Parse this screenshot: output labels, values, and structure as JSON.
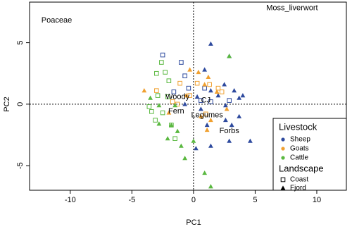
{
  "chart_data": {
    "type": "scatter",
    "xlabel": "PC1",
    "ylabel": "PC2",
    "xlim": [
      -13.3,
      12.4
    ],
    "ylim": [
      -7.0,
      8.3
    ],
    "xticks": [
      -10,
      -5,
      0,
      5,
      10
    ],
    "yticks": [
      -5,
      0,
      5
    ],
    "reference_lines": true,
    "annotations": [
      {
        "text": "Poaceae",
        "x": -11.1,
        "y": 6.8
      },
      {
        "text": "Moss_liverwort",
        "x": 8.0,
        "y": 7.8
      },
      {
        "text": "Woody",
        "x": -1.3,
        "y": 0.6
      },
      {
        "text": "CJ",
        "x": 1.0,
        "y": 0.3
      },
      {
        "text": "Fern",
        "x": -1.4,
        "y": -0.6
      },
      {
        "text": "Legumes",
        "x": 1.1,
        "y": -0.9
      },
      {
        "text": "Forbs",
        "x": 2.9,
        "y": -2.2
      }
    ],
    "legend": {
      "position": "bottom-right",
      "livestock": {
        "title": "Livestock",
        "items": [
          {
            "name": "Sheep",
            "color": "#2e4a9e"
          },
          {
            "name": "Goats",
            "color": "#f0a030"
          },
          {
            "name": "Cattle",
            "color": "#5ab840"
          }
        ]
      },
      "landscape": {
        "title": "Landscape",
        "items": [
          {
            "name": "Coast",
            "shape": "square"
          },
          {
            "name": "Fjord",
            "shape": "triangle"
          }
        ]
      }
    },
    "series": [
      {
        "color": "#2e4a9e",
        "shape": "triangle",
        "x": [
          1.4,
          2.9,
          0.9,
          2.5,
          3.3,
          4.0,
          3.7,
          1.4,
          0.3,
          0.6,
          2.6,
          1.1,
          3.1,
          3.7,
          4.6,
          2.9,
          1.4,
          0.2,
          -0.7,
          2.6,
          2.0
        ],
        "y": [
          4.9,
          3.9,
          2.8,
          1.6,
          1.1,
          0.7,
          0.5,
          1.1,
          0.6,
          -0.4,
          -1.3,
          -1.7,
          -1.7,
          -1.0,
          -3.0,
          -3.0,
          -3.4,
          -3.6,
          0.0,
          -0.1,
          0.7
        ]
      },
      {
        "color": "#2e4a9e",
        "shape": "square",
        "x": [
          -2.5,
          -1.0,
          -0.7,
          -1.6,
          0.9,
          1.4,
          2.9,
          -0.4,
          0.6
        ],
        "y": [
          4.0,
          3.4,
          2.3,
          1.0,
          1.3,
          0.2,
          0.3,
          1.3,
          0.3
        ]
      },
      {
        "color": "#f0a030",
        "shape": "triangle",
        "x": [
          -4.0,
          -0.3,
          0.4,
          1.2,
          0.9,
          1.9,
          0.6,
          2.7,
          1.1,
          -2.0,
          -0.6,
          1.4
        ],
        "y": [
          1.1,
          2.8,
          2.6,
          2.2,
          1.6,
          1.0,
          -1.0,
          -0.4,
          -2.1,
          -0.7,
          0.7,
          -1.3
        ]
      },
      {
        "color": "#f0a030",
        "shape": "square",
        "x": [
          -3.0,
          -1.1,
          0.3,
          1.3,
          2.0,
          2.3,
          -0.3,
          -1.7,
          -1.3,
          1.0
        ],
        "y": [
          1.1,
          1.7,
          1.7,
          1.6,
          1.3,
          1.0,
          0.7,
          0.2,
          0.0,
          -0.8
        ]
      },
      {
        "color": "#5ab840",
        "shape": "triangle",
        "x": [
          -3.5,
          -1.5,
          -2.8,
          -1.8,
          -1.3,
          -2.1,
          -1.0,
          -0.7,
          0.9,
          1.4,
          0.0,
          -2.8,
          2.9
        ],
        "y": [
          0.5,
          -0.1,
          -1.6,
          -1.7,
          -2.2,
          -2.8,
          -3.4,
          -4.4,
          -5.6,
          -6.7,
          -3.0,
          -0.1,
          3.9
        ]
      },
      {
        "color": "#5ab840",
        "shape": "square",
        "x": [
          -2.6,
          -2.3,
          -3.0,
          -2.9,
          -2.1,
          -3.6,
          -3.4,
          -2.5,
          -1.8,
          -3.1,
          -1.5,
          -2.0
        ],
        "y": [
          3.4,
          2.6,
          2.5,
          0.7,
          0.6,
          -0.2,
          -0.6,
          -0.7,
          -1.7,
          -1.3,
          -2.8,
          1.9
        ]
      }
    ]
  }
}
